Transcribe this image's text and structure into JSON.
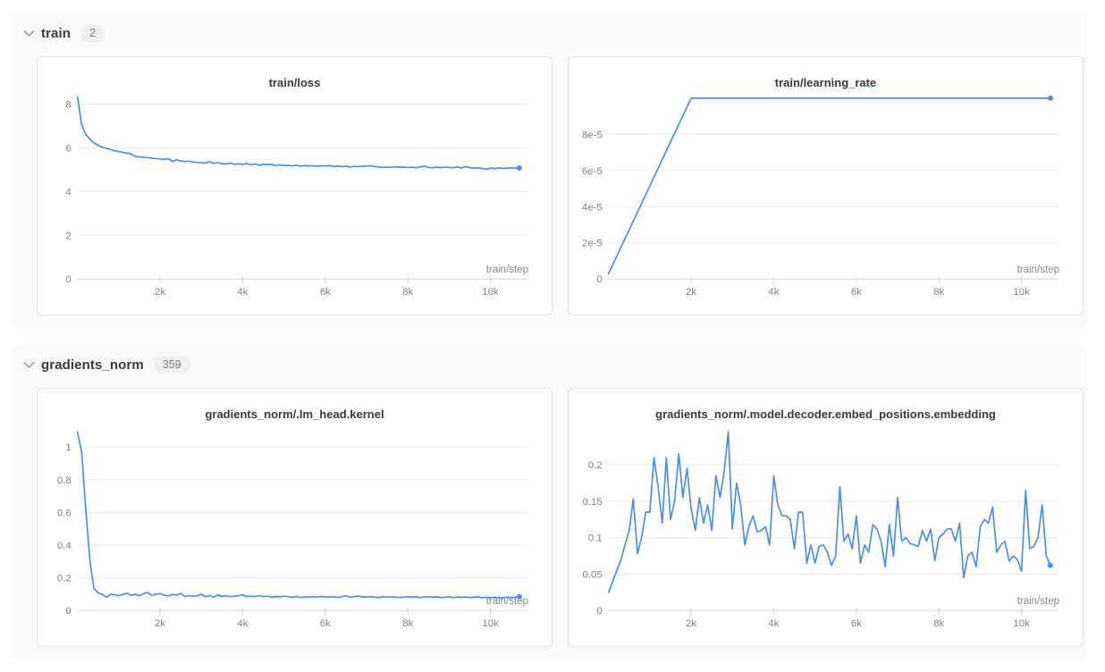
{
  "colors": {
    "line": "#4a90e2",
    "panel_bg": "#f9f9f9",
    "card_border": "#e3e3e3",
    "grid": "#ebebeb",
    "axis": "#d5d5d5",
    "tick_text": "#828282",
    "title_text": "#3a3a3a"
  },
  "sections": [
    {
      "label": "train",
      "count": "2"
    },
    {
      "label": "gradients_norm",
      "count": "359"
    }
  ],
  "chart_data": [
    {
      "type": "line",
      "title": "train/loss",
      "xlabel": "train/step",
      "xlim": [
        0,
        10900
      ],
      "ylim": [
        0,
        8.6
      ],
      "x_ticks": {
        "values": [
          2000,
          4000,
          6000,
          8000,
          10000
        ],
        "labels": [
          "2k",
          "4k",
          "6k",
          "8k",
          "10k"
        ]
      },
      "y_ticks": {
        "values": [
          0,
          2,
          4,
          6,
          8
        ],
        "labels": [
          "0",
          "2",
          "4",
          "6",
          "8"
        ]
      },
      "x": [
        0,
        100,
        200,
        300,
        400,
        500,
        600,
        700,
        800,
        900,
        1000,
        1100,
        1200,
        1300,
        1400,
        1500,
        1600,
        1700,
        1800,
        1900,
        2000,
        2100,
        2200,
        2300,
        2400,
        2500,
        2600,
        2700,
        2800,
        2900,
        3000,
        3100,
        3200,
        3300,
        3400,
        3500,
        3600,
        3700,
        3800,
        3900,
        4000,
        4100,
        4200,
        4300,
        4400,
        4500,
        4600,
        4700,
        4800,
        4900,
        5000,
        5100,
        5200,
        5300,
        5400,
        5500,
        5600,
        5700,
        5800,
        5900,
        6000,
        6100,
        6200,
        6300,
        6400,
        6500,
        6600,
        6700,
        6800,
        6900,
        7000,
        7100,
        7200,
        7300,
        7400,
        7500,
        7600,
        7700,
        7800,
        7900,
        8000,
        8100,
        8200,
        8300,
        8400,
        8500,
        8600,
        8700,
        8800,
        8900,
        9000,
        9100,
        9200,
        9300,
        9400,
        9500,
        9600,
        9700,
        9800,
        9900,
        10000,
        10100,
        10200,
        10300,
        10400,
        10500,
        10600,
        10700
      ],
      "y": [
        8.32,
        7.05,
        6.62,
        6.38,
        6.22,
        6.11,
        6.03,
        5.97,
        5.92,
        5.87,
        5.83,
        5.79,
        5.76,
        5.72,
        5.6,
        5.58,
        5.57,
        5.55,
        5.53,
        5.51,
        5.49,
        5.47,
        5.5,
        5.38,
        5.45,
        5.4,
        5.37,
        5.39,
        5.35,
        5.33,
        5.32,
        5.3,
        5.36,
        5.29,
        5.32,
        5.27,
        5.26,
        5.3,
        5.24,
        5.27,
        5.24,
        5.28,
        5.22,
        5.27,
        5.2,
        5.25,
        5.22,
        5.24,
        5.18,
        5.22,
        5.19,
        5.2,
        5.17,
        5.2,
        5.16,
        5.19,
        5.17,
        5.18,
        5.16,
        5.18,
        5.17,
        5.19,
        5.14,
        5.17,
        5.14,
        5.16,
        5.12,
        5.15,
        5.14,
        5.16,
        5.17,
        5.18,
        5.14,
        5.12,
        5.1,
        5.12,
        5.1,
        5.13,
        5.11,
        5.12,
        5.1,
        5.11,
        5.09,
        5.12,
        5.17,
        5.1,
        5.09,
        5.11,
        5.09,
        5.12,
        5.1,
        5.09,
        5.12,
        5.08,
        5.14,
        5.09,
        5.07,
        5.08,
        5.06,
        5.02,
        5.08,
        5.05,
        5.08,
        5.06,
        5.07,
        5.08,
        5.07,
        5.08
      ]
    },
    {
      "type": "line",
      "title": "train/learning_rate",
      "xlabel": "train/step",
      "xlim": [
        0,
        10900
      ],
      "ylim": [
        0,
        0.000104
      ],
      "x_ticks": {
        "values": [
          2000,
          4000,
          6000,
          8000,
          10000
        ],
        "labels": [
          "2k",
          "4k",
          "6k",
          "8k",
          "10k"
        ]
      },
      "y_ticks": {
        "values": [
          0,
          2e-05,
          4e-05,
          6e-05,
          8e-05
        ],
        "labels": [
          "0",
          "2e-5",
          "4e-5",
          "6e-5",
          "8e-5"
        ]
      },
      "x": [
        0,
        2000,
        10700
      ],
      "y": [
        3e-06,
        0.0001,
        0.0001
      ]
    },
    {
      "type": "line",
      "title": "gradients_norm/.lm_head.kernel",
      "xlabel": "train/step",
      "xlim": [
        0,
        10900
      ],
      "ylim": [
        0,
        1.15
      ],
      "x_ticks": {
        "values": [
          2000,
          4000,
          6000,
          8000,
          10000
        ],
        "labels": [
          "2k",
          "4k",
          "6k",
          "8k",
          "10k"
        ]
      },
      "y_ticks": {
        "values": [
          0,
          0.2,
          0.4,
          0.6,
          0.8,
          1
        ],
        "labels": [
          "0",
          "0.2",
          "0.4",
          "0.6",
          "0.8",
          "1"
        ]
      },
      "x": [
        0,
        100,
        200,
        300,
        400,
        500,
        600,
        700,
        800,
        900,
        1000,
        1100,
        1200,
        1300,
        1400,
        1500,
        1600,
        1700,
        1800,
        1900,
        2000,
        2100,
        2200,
        2300,
        2400,
        2500,
        2600,
        2700,
        2800,
        2900,
        3000,
        3100,
        3200,
        3300,
        3400,
        3500,
        3600,
        3700,
        3800,
        3900,
        4000,
        4100,
        4200,
        4300,
        4400,
        4500,
        4600,
        4700,
        4800,
        4900,
        5000,
        5100,
        5200,
        5300,
        5400,
        5500,
        5600,
        5700,
        5800,
        5900,
        6000,
        6100,
        6200,
        6300,
        6400,
        6500,
        6600,
        6700,
        6800,
        6900,
        7000,
        7100,
        7200,
        7300,
        7400,
        7500,
        7600,
        7700,
        7800,
        7900,
        8000,
        8100,
        8200,
        8300,
        8400,
        8500,
        8600,
        8700,
        8800,
        8900,
        9000,
        9100,
        9200,
        9300,
        9400,
        9500,
        9600,
        9700,
        9800,
        9900,
        10000,
        10100,
        10200,
        10300,
        10400,
        10500,
        10600,
        10700
      ],
      "y": [
        1.09,
        0.97,
        0.62,
        0.3,
        0.135,
        0.108,
        0.1,
        0.082,
        0.1,
        0.096,
        0.091,
        0.1,
        0.105,
        0.094,
        0.1,
        0.091,
        0.104,
        0.11,
        0.094,
        0.1,
        0.104,
        0.094,
        0.09,
        0.1,
        0.094,
        0.105,
        0.086,
        0.091,
        0.088,
        0.09,
        0.1,
        0.085,
        0.091,
        0.082,
        0.096,
        0.086,
        0.09,
        0.085,
        0.088,
        0.091,
        0.096,
        0.085,
        0.088,
        0.085,
        0.091,
        0.085,
        0.088,
        0.082,
        0.086,
        0.084,
        0.088,
        0.085,
        0.082,
        0.086,
        0.08,
        0.084,
        0.082,
        0.086,
        0.083,
        0.086,
        0.084,
        0.082,
        0.085,
        0.08,
        0.085,
        0.09,
        0.082,
        0.085,
        0.088,
        0.084,
        0.082,
        0.085,
        0.083,
        0.08,
        0.084,
        0.082,
        0.085,
        0.083,
        0.08,
        0.083,
        0.085,
        0.082,
        0.084,
        0.08,
        0.083,
        0.085,
        0.082,
        0.084,
        0.08,
        0.082,
        0.085,
        0.08,
        0.083,
        0.081,
        0.084,
        0.08,
        0.082,
        0.084,
        0.078,
        0.082,
        0.08,
        0.082,
        0.078,
        0.08,
        0.082,
        0.08,
        0.082,
        0.085
      ]
    },
    {
      "type": "line",
      "title": "gradients_norm/.model.decoder.embed_positions.embedding",
      "xlabel": "train/step",
      "xlim": [
        0,
        10900
      ],
      "ylim": [
        0,
        0.258
      ],
      "x_ticks": {
        "values": [
          2000,
          4000,
          6000,
          8000,
          10000
        ],
        "labels": [
          "2k",
          "4k",
          "6k",
          "8k",
          "10k"
        ]
      },
      "y_ticks": {
        "values": [
          0,
          0.05,
          0.1,
          0.15,
          0.2
        ],
        "labels": [
          "0",
          "0.05",
          "0.1",
          "0.15",
          "0.2"
        ]
      },
      "x": [
        0,
        100,
        200,
        300,
        400,
        500,
        600,
        700,
        800,
        900,
        1000,
        1100,
        1200,
        1300,
        1400,
        1500,
        1600,
        1700,
        1800,
        1900,
        2000,
        2100,
        2200,
        2300,
        2400,
        2500,
        2600,
        2700,
        2800,
        2900,
        3000,
        3100,
        3200,
        3300,
        3400,
        3500,
        3600,
        3700,
        3800,
        3900,
        4000,
        4100,
        4200,
        4300,
        4400,
        4500,
        4600,
        4700,
        4800,
        4900,
        5000,
        5100,
        5200,
        5300,
        5400,
        5500,
        5600,
        5700,
        5800,
        5900,
        6000,
        6100,
        6200,
        6300,
        6400,
        6500,
        6600,
        6700,
        6800,
        6900,
        7000,
        7100,
        7200,
        7300,
        7400,
        7500,
        7600,
        7700,
        7800,
        7900,
        8000,
        8100,
        8200,
        8300,
        8400,
        8500,
        8600,
        8700,
        8800,
        8900,
        9000,
        9100,
        9200,
        9300,
        9400,
        9500,
        9600,
        9700,
        9800,
        9900,
        10000,
        10100,
        10200,
        10300,
        10400,
        10500,
        10600,
        10700
      ],
      "y": [
        0.025,
        0.04,
        0.055,
        0.07,
        0.09,
        0.11,
        0.153,
        0.078,
        0.1,
        0.135,
        0.135,
        0.21,
        0.17,
        0.12,
        0.21,
        0.125,
        0.15,
        0.215,
        0.155,
        0.195,
        0.14,
        0.11,
        0.155,
        0.12,
        0.145,
        0.11,
        0.185,
        0.155,
        0.19,
        0.245,
        0.112,
        0.175,
        0.145,
        0.09,
        0.115,
        0.13,
        0.108,
        0.11,
        0.115,
        0.09,
        0.185,
        0.145,
        0.13,
        0.13,
        0.125,
        0.085,
        0.135,
        0.135,
        0.065,
        0.09,
        0.065,
        0.088,
        0.09,
        0.08,
        0.062,
        0.075,
        0.17,
        0.095,
        0.105,
        0.085,
        0.13,
        0.065,
        0.09,
        0.08,
        0.118,
        0.112,
        0.095,
        0.06,
        0.118,
        0.075,
        0.155,
        0.095,
        0.1,
        0.092,
        0.09,
        0.088,
        0.11,
        0.095,
        0.112,
        0.068,
        0.1,
        0.105,
        0.112,
        0.112,
        0.095,
        0.12,
        0.045,
        0.075,
        0.08,
        0.06,
        0.115,
        0.125,
        0.12,
        0.142,
        0.08,
        0.09,
        0.095,
        0.068,
        0.075,
        0.07,
        0.054,
        0.165,
        0.085,
        0.088,
        0.1,
        0.145,
        0.075,
        0.062
      ]
    }
  ]
}
